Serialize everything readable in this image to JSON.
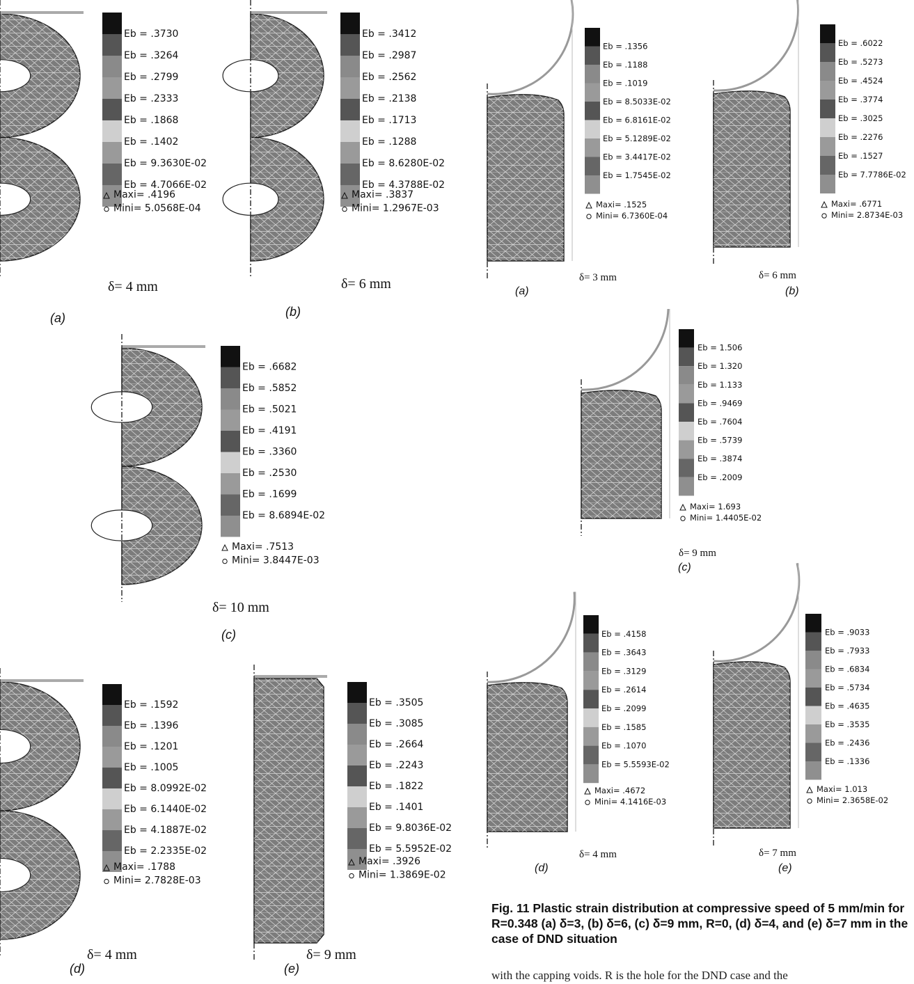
{
  "panels": [
    {
      "legend": [
        "Eb =  .3730",
        "Eb =  .3264",
        "Eb =  .2799",
        "Eb =  .2333",
        "Eb =  .1868",
        "Eb =  .1402",
        "Eb = 9.3630E-02",
        "Eb = 4.7066E-02"
      ],
      "maxi": "Maxi=  .4196",
      "mini": "Mini=  5.0568E-04",
      "delta": "δ= 4 mm",
      "label": "(a)"
    },
    {
      "legend": [
        "Eb =  .3412",
        "Eb =  .2987",
        "Eb =  .2562",
        "Eb =  .2138",
        "Eb =  .1713",
        "Eb =  .1288",
        "Eb = 8.6280E-02",
        "Eb = 4.3788E-02"
      ],
      "maxi": "Maxi=  .3837",
      "mini": "Mini=  1.2967E-03",
      "delta": "δ= 6 mm",
      "label": "(b)"
    },
    {
      "legend": [
        "Eb =  .6682",
        "Eb =  .5852",
        "Eb =  .5021",
        "Eb =  .4191",
        "Eb =  .3360",
        "Eb =  .2530",
        "Eb =  .1699",
        "Eb = 8.6894E-02"
      ],
      "maxi": "Maxi=  .7513",
      "mini": "Mini=  3.8447E-03",
      "delta": "δ= 10 mm",
      "label": "(c)"
    },
    {
      "legend": [
        "Eb =  .1592",
        "Eb =  .1396",
        "Eb =  .1201",
        "Eb =  .1005",
        "Eb = 8.0992E-02",
        "Eb = 6.1440E-02",
        "Eb = 4.1887E-02",
        "Eb = 2.2335E-02"
      ],
      "maxi": "Maxi=  .1788",
      "mini": "Mini=  2.7828E-03",
      "delta": "δ= 4 mm",
      "label": "(d)"
    },
    {
      "legend": [
        "Eb =  .3505",
        "Eb =  .3085",
        "Eb =  .2664",
        "Eb =  .2243",
        "Eb =  .1822",
        "Eb =  .1401",
        "Eb = 9.8036E-02",
        "Eb = 5.5952E-02"
      ],
      "maxi": "Maxi=  .3926",
      "mini": "Mini=  1.3869E-02",
      "delta": "δ= 9 mm",
      "label": "(e)"
    },
    {
      "legend": [
        "Eb =  .1356",
        "Eb =  .1188",
        "Eb =  .1019",
        "Eb = 8.5033E-02",
        "Eb = 6.8161E-02",
        "Eb = 5.1289E-02",
        "Eb = 3.4417E-02",
        "Eb = 1.7545E-02"
      ],
      "maxi": "Maxi=  .1525",
      "mini": "Mini=  6.7360E-04",
      "delta": "δ= 3 mm",
      "label": "(a)"
    },
    {
      "legend": [
        "Eb =  .6022",
        "Eb =  .5273",
        "Eb =  .4524",
        "Eb =  .3774",
        "Eb =  .3025",
        "Eb =  .2276",
        "Eb =  .1527",
        "Eb = 7.7786E-02"
      ],
      "maxi": "Maxi=  .6771",
      "mini": "Mini=  2.8734E-03",
      "delta": "δ= 6 mm",
      "label": "(b)"
    },
    {
      "legend": [
        "Eb =  1.506",
        "Eb =  1.320",
        "Eb =  1.133",
        "Eb =  .9469",
        "Eb =  .7604",
        "Eb =  .5739",
        "Eb =  .3874",
        "Eb =  .2009"
      ],
      "maxi": "Maxi=  1.693",
      "mini": "Mini=  1.4405E-02",
      "delta": "δ= 9 mm",
      "label": "(c)"
    },
    {
      "legend": [
        "Eb =  .4158",
        "Eb =  .3643",
        "Eb =  .3129",
        "Eb =  .2614",
        "Eb =  .2099",
        "Eb =  .1585",
        "Eb =  .1070",
        "Eb = 5.5593E-02"
      ],
      "maxi": "Maxi=  .4672",
      "mini": "Mini=  4.1416E-03",
      "delta": "δ= 4 mm",
      "label": "(d)"
    },
    {
      "legend": [
        "Eb =  .9033",
        "Eb =  .7933",
        "Eb =  .6834",
        "Eb =  .5734",
        "Eb =  .4635",
        "Eb =  .3535",
        "Eb =  .2436",
        "Eb =  .1336"
      ],
      "maxi": "Maxi=  1.013",
      "mini": "Mini=  2.3658E-02",
      "delta": "δ= 7 mm",
      "label": "(e)"
    }
  ],
  "caption": "Fig. 11   Plastic strain distribution at compressive speed of 5 mm/min for R=0.348 (a) δ=3, (b) δ=6, (c) δ=9 mm, R=0, (d) δ=4, and (e) δ=7 mm in the case of DND situation",
  "body_text": "with the capping voids. R is the hole for the DND case and the"
}
